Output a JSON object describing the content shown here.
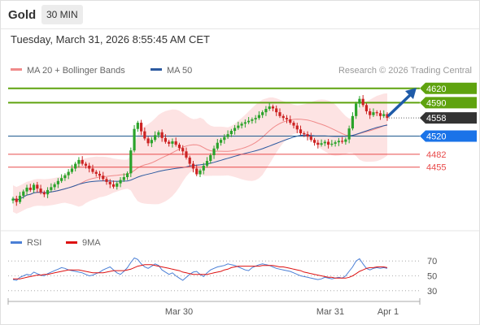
{
  "header": {
    "symbol": "Gold",
    "timeframe": "30 MIN",
    "datetime": "Tuesday, March 31, 2026 8:55:45 AM CET"
  },
  "colors": {
    "resistance": "#5fa30f",
    "pivot": "#1f5b8f",
    "support": "#e84a4a",
    "current": "#333333",
    "arrow": "#1f5ba8",
    "bull_candle": "#2aa32a",
    "bear_candle": "#cc2222",
    "band_fill": "#fde3e3",
    "ma20": "#f08a8a",
    "ma50": "#2c5aa0",
    "rsi": "#4a7fd6",
    "rsi_ma": "#dd1111"
  },
  "chart_data": [
    {
      "type": "candlestick",
      "legend": [
        {
          "label": "MA 20 + Bollinger Bands",
          "color": "#f08a8a"
        },
        {
          "label": "MA 50",
          "color": "#2c5aa0"
        }
      ],
      "watermark": "Research © 2026 Trading Central",
      "ylim": [
        4320,
        4640
      ],
      "levels": [
        {
          "value": 4620,
          "label": "4620",
          "kind": "resistance"
        },
        {
          "value": 4590,
          "label": "4590",
          "kind": "resistance"
        },
        {
          "value": 4558,
          "label": "4558",
          "kind": "current"
        },
        {
          "value": 4520,
          "label": "4520",
          "kind": "pivot"
        },
        {
          "value": 4482,
          "label": "4482",
          "kind": "support"
        },
        {
          "value": 4455,
          "label": "4455",
          "kind": "support"
        }
      ],
      "x_tick_labels": [
        "Mar 30",
        "Mar 31",
        "Apr 1"
      ],
      "close": [
        4389,
        4382,
        4395,
        4404,
        4412,
        4407,
        4418,
        4410,
        4402,
        4398,
        4407,
        4413,
        4419,
        4426,
        4432,
        4438,
        4445,
        4452,
        4462,
        4470,
        4462,
        4458,
        4452,
        4445,
        4441,
        4437,
        4430,
        4424,
        4419,
        4414,
        4421,
        4428,
        4434,
        4442,
        4490,
        4535,
        4548,
        4530,
        4515,
        4505,
        4512,
        4522,
        4528,
        4516,
        4508,
        4504,
        4509,
        4502,
        4495,
        4488,
        4475,
        4462,
        4452,
        4440,
        4448,
        4458,
        4468,
        4480,
        4494,
        4506,
        4512,
        4518,
        4524,
        4531,
        4537,
        4542,
        4546,
        4549,
        4552,
        4555,
        4558,
        4564,
        4570,
        4577,
        4582,
        4578,
        4570,
        4562,
        4558,
        4555,
        4548,
        4542,
        4534,
        4526,
        4524,
        4519,
        4512,
        4506,
        4502,
        4505,
        4508,
        4502,
        4504,
        4507,
        4510,
        4508,
        4513,
        4536,
        4562,
        4588,
        4598,
        4585,
        4572,
        4564,
        4570,
        4568,
        4562,
        4566,
        4558
      ]
    },
    {
      "type": "line",
      "legend": [
        {
          "label": "RSI",
          "color": "#4a7fd6"
        },
        {
          "label": "9MA",
          "color": "#dd1111"
        }
      ],
      "ylim": [
        20,
        80
      ],
      "y_ticks": [
        70,
        50,
        30
      ],
      "series": [
        {
          "name": "RSI",
          "values": [
            45,
            44,
            48,
            50,
            52,
            51,
            55,
            53,
            51,
            50,
            53,
            55,
            57,
            59,
            61,
            60,
            58,
            57,
            56,
            55,
            54,
            52,
            50,
            51,
            53,
            55,
            58,
            60,
            62,
            58,
            54,
            52,
            56,
            61,
            68,
            74,
            72,
            66,
            62,
            60,
            63,
            66,
            64,
            58,
            55,
            52,
            54,
            50,
            47,
            44,
            48,
            52,
            55,
            56,
            52,
            49,
            54,
            58,
            60,
            62,
            63,
            64,
            66,
            65,
            64,
            62,
            60,
            58,
            57,
            61,
            63,
            65,
            66,
            65,
            64,
            62,
            60,
            59,
            58,
            57,
            56,
            54,
            52,
            50,
            49,
            48,
            47,
            46,
            45,
            46,
            48,
            47,
            46,
            47,
            48,
            47,
            50,
            56,
            62,
            70,
            73,
            66,
            60,
            58,
            60,
            61,
            60,
            61,
            60
          ]
        },
        {
          "name": "9MA",
          "values": [
            46,
            46,
            46,
            47,
            48,
            49,
            50,
            51,
            51,
            52,
            52,
            53,
            54,
            55,
            56,
            57,
            58,
            58,
            58,
            58,
            57,
            56,
            55,
            54,
            54,
            54,
            54,
            55,
            56,
            57,
            57,
            57,
            57,
            58,
            59,
            61,
            63,
            64,
            65,
            65,
            65,
            64,
            63,
            62,
            61,
            60,
            59,
            58,
            57,
            55,
            54,
            53,
            52,
            52,
            52,
            52,
            52,
            53,
            54,
            55,
            56,
            58,
            59,
            61,
            62,
            63,
            63,
            63,
            63,
            63,
            63,
            63,
            64,
            64,
            64,
            64,
            63,
            62,
            62,
            61,
            60,
            59,
            58,
            57,
            55,
            54,
            53,
            52,
            51,
            50,
            49,
            48,
            48,
            47,
            47,
            47,
            47,
            48,
            50,
            53,
            56,
            58,
            60,
            61,
            61,
            62,
            62,
            62,
            61
          ]
        }
      ]
    }
  ]
}
